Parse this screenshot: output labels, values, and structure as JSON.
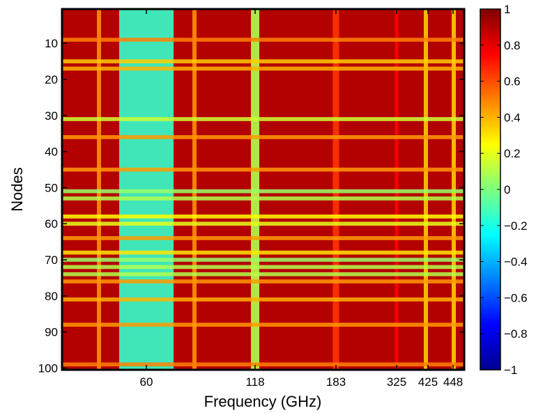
{
  "chart_data": {
    "type": "heatmap",
    "title": "",
    "xlabel": "Frequency (GHz)",
    "ylabel": "Nodes",
    "x_tick_labels": [
      "60",
      "118",
      "183",
      "325",
      "425",
      "448"
    ],
    "y_ticks": [
      10,
      20,
      30,
      40,
      50,
      60,
      70,
      80,
      90,
      100
    ],
    "y_range": [
      1,
      100
    ],
    "colorbar": {
      "range": [
        -1,
        1
      ],
      "ticks": [
        1,
        0.8,
        0.6,
        0.4,
        0.2,
        0,
        -0.2,
        -0.4,
        -0.6,
        -0.8,
        -1
      ],
      "tick_labels": [
        "1",
        "0.8",
        "0.6",
        "0.4",
        "0.2",
        "0",
        "−0.2",
        "−0.4",
        "−0.6",
        "−0.8",
        "−1"
      ],
      "colormap": "jet"
    },
    "grid": false,
    "background_value": 0.9,
    "column_bands": [
      {
        "label": "60",
        "value": -0.15,
        "note": "wide low-correlation band around 60 GHz"
      },
      {
        "label": "118",
        "value": 0.1
      },
      {
        "label": "183",
        "value": 0.65
      },
      {
        "label": "325",
        "value": 0.75
      },
      {
        "label": "425",
        "value": 0.35
      },
      {
        "label": "448",
        "value": 0.35
      }
    ],
    "row_bands": [
      {
        "node": 9,
        "value": 0.5
      },
      {
        "node": 15,
        "value": 0.35
      },
      {
        "node": 17,
        "value": 0.4
      },
      {
        "node": 31,
        "value": 0.15
      },
      {
        "node": 36,
        "value": 0.45
      },
      {
        "node": 45,
        "value": 0.45
      },
      {
        "node": 51,
        "value": 0.05
      },
      {
        "node": 53,
        "value": 0.1
      },
      {
        "node": 58,
        "value": 0.25
      },
      {
        "node": 60,
        "value": 0.2
      },
      {
        "node": 64,
        "value": 0.45
      },
      {
        "node": 68,
        "value": 0.3
      },
      {
        "node": 70,
        "value": 0.05
      },
      {
        "node": 72,
        "value": 0.1
      },
      {
        "node": 74,
        "value": 0.1
      },
      {
        "node": 76,
        "value": 0.45
      },
      {
        "node": 81,
        "value": 0.4
      },
      {
        "node": 88,
        "value": 0.45
      },
      {
        "node": 99,
        "value": 0.5
      }
    ]
  }
}
